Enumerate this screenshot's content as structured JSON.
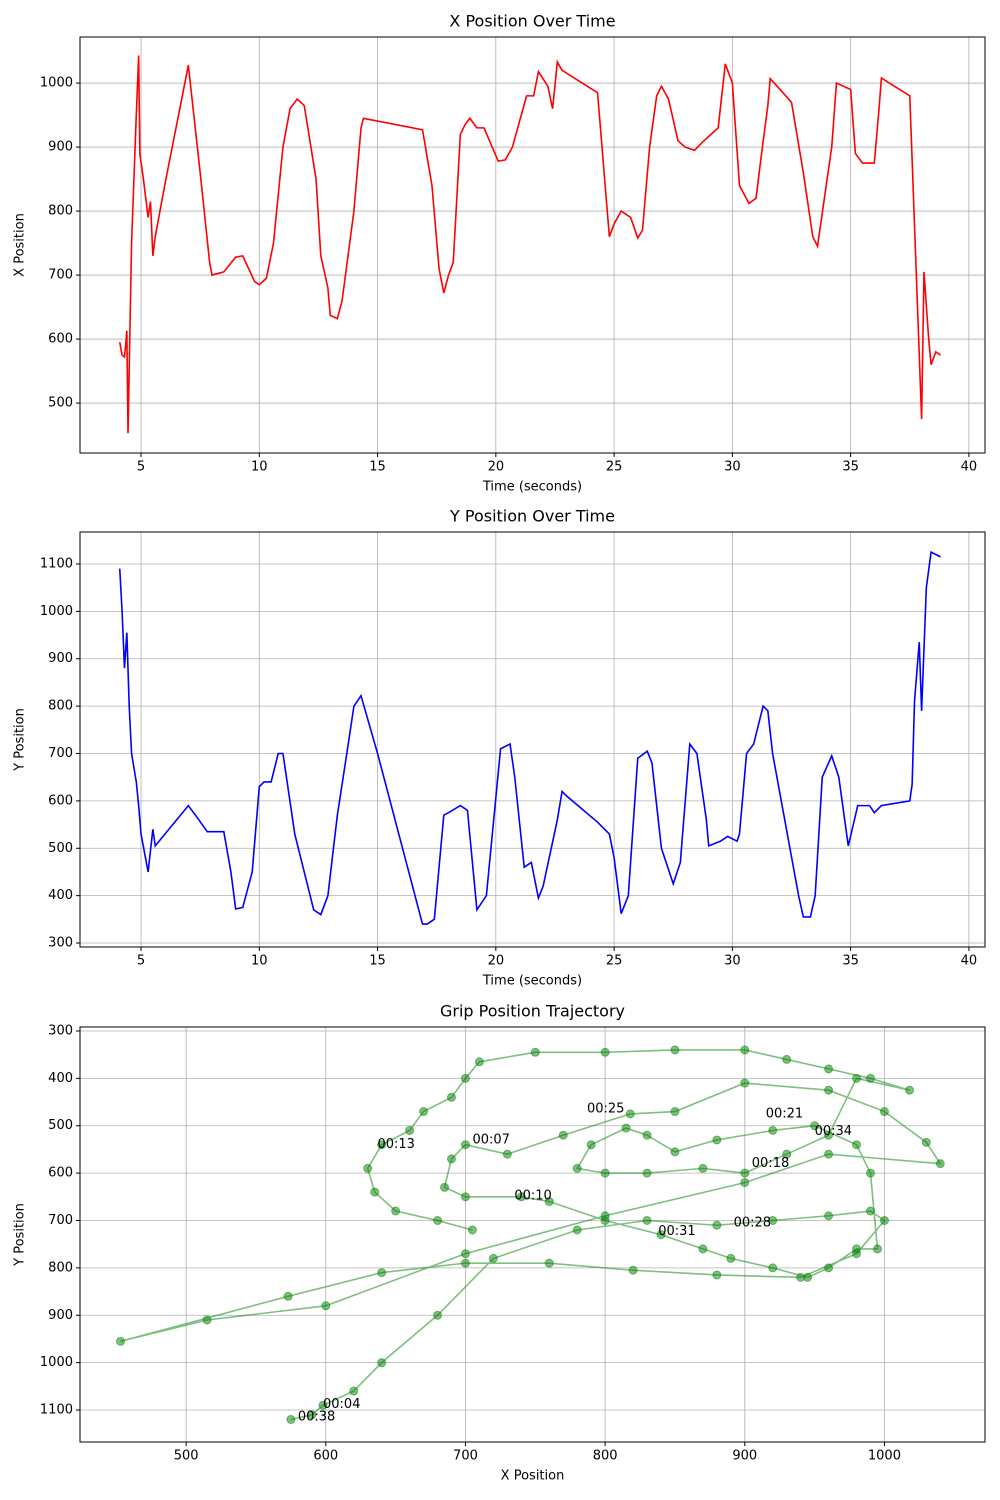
{
  "chart_data": [
    {
      "type": "line",
      "title": "X Position Over Time",
      "x_label": "Time (seconds)",
      "y_label": "X Position",
      "xlim": [
        2.42,
        40.68
      ],
      "ylim": [
        422,
        1072
      ],
      "xticks": [
        5,
        10,
        15,
        20,
        25,
        30,
        35,
        40
      ],
      "yticks": [
        500,
        600,
        700,
        800,
        900,
        1000
      ],
      "grid": true,
      "series": [
        {
          "name": "X",
          "color": "#ff0000",
          "x": [
            4.1,
            4.2,
            4.3,
            4.35,
            4.4,
            4.45,
            4.6,
            4.8,
            4.9,
            4.95,
            5.1,
            5.3,
            5.4,
            5.5,
            5.6,
            6.0,
            7.0,
            7.5,
            7.9,
            8.0,
            8.5,
            9.0,
            9.3,
            9.8,
            10.0,
            10.3,
            10.6,
            11.0,
            11.3,
            11.6,
            11.9,
            12.4,
            12.6,
            12.9,
            13.0,
            13.3,
            13.5,
            14.0,
            14.3,
            14.4,
            16.9,
            17.3,
            17.6,
            17.8,
            18.0,
            18.2,
            18.5,
            18.7,
            18.9,
            19.2,
            19.5,
            20.1,
            20.4,
            20.7,
            21.3,
            21.6,
            21.8,
            22.2,
            22.4,
            22.6,
            22.8,
            24.3,
            24.8,
            25.0,
            25.3,
            25.7,
            26.0,
            26.2,
            26.5,
            26.8,
            27.0,
            27.3,
            27.7,
            28.0,
            28.4,
            28.8,
            29.4,
            29.7,
            30.0,
            30.3,
            30.7,
            31.0,
            31.2,
            31.5,
            31.6,
            32.5,
            33.0,
            33.4,
            33.6,
            34.2,
            34.4,
            35.0,
            35.2,
            35.5,
            36.0,
            36.2,
            36.3,
            37.5,
            38.0,
            38.1,
            38.3,
            38.4,
            38.6,
            38.8
          ],
          "values": [
            595,
            575,
            572,
            590,
            613,
            453,
            750,
            950,
            1043,
            890,
            850,
            790,
            815,
            730,
            760,
            840,
            1028,
            860,
            720,
            700,
            705,
            728,
            730,
            690,
            685,
            695,
            750,
            900,
            960,
            975,
            965,
            850,
            730,
            680,
            637,
            632,
            660,
            800,
            930,
            945,
            927,
            840,
            710,
            672,
            700,
            720,
            920,
            935,
            945,
            930,
            930,
            878,
            880,
            900,
            980,
            980,
            1018,
            995,
            960,
            1033,
            1020,
            985,
            760,
            780,
            800,
            790,
            758,
            770,
            900,
            980,
            995,
            975,
            910,
            900,
            895,
            910,
            930,
            1030,
            1000,
            840,
            812,
            820,
            880,
            965,
            1007,
            970,
            860,
            760,
            745,
            900,
            1000,
            990,
            890,
            875,
            875,
            960,
            1008,
            980,
            475,
            705,
            600,
            560,
            580,
            575
          ]
        }
      ]
    },
    {
      "type": "line",
      "title": "Y Position Over Time",
      "x_label": "Time (seconds)",
      "y_label": "Y Position",
      "xlim": [
        2.42,
        40.68
      ],
      "ylim": [
        291.6,
        1167.5
      ],
      "xticks": [
        5,
        10,
        15,
        20,
        25,
        30,
        35,
        40
      ],
      "yticks": [
        300,
        400,
        500,
        600,
        700,
        800,
        900,
        1000,
        1100
      ],
      "grid": true,
      "series": [
        {
          "name": "Y",
          "color": "#0000ff",
          "x": [
            4.1,
            4.2,
            4.3,
            4.4,
            4.5,
            4.6,
            4.8,
            4.9,
            5.0,
            5.3,
            5.5,
            5.6,
            7.0,
            7.3,
            7.8,
            8.5,
            8.8,
            9.0,
            9.3,
            9.7,
            10.0,
            10.2,
            10.5,
            10.8,
            11.0,
            11.5,
            12.3,
            12.6,
            12.9,
            13.3,
            13.7,
            14.0,
            14.3,
            15.0,
            16.9,
            17.1,
            17.4,
            17.8,
            18.0,
            18.5,
            18.8,
            19.2,
            19.6,
            20.2,
            20.6,
            20.8,
            21.2,
            21.5,
            21.8,
            22.0,
            22.6,
            22.8,
            23.0,
            24.3,
            24.8,
            25.0,
            25.3,
            25.6,
            26.0,
            26.4,
            26.6,
            27.0,
            27.5,
            27.8,
            28.2,
            28.5,
            28.9,
            29.0,
            29.5,
            29.8,
            30.2,
            30.3,
            30.6,
            30.9,
            31.3,
            31.5,
            31.7,
            32.8,
            33.0,
            33.3,
            33.5,
            33.8,
            34.2,
            34.5,
            34.9,
            35.3,
            35.8,
            36.0,
            36.3,
            37.5,
            37.6,
            37.7,
            37.9,
            38.0,
            38.2,
            38.4,
            38.6,
            38.8
          ],
          "values": [
            1090,
            1000,
            880,
            955,
            800,
            700,
            640,
            590,
            530,
            450,
            540,
            505,
            590,
            570,
            535,
            535,
            450,
            372,
            375,
            450,
            630,
            640,
            640,
            700,
            700,
            530,
            370,
            360,
            400,
            570,
            700,
            800,
            822,
            700,
            340,
            340,
            350,
            570,
            575,
            590,
            580,
            370,
            400,
            710,
            720,
            650,
            460,
            470,
            395,
            420,
            560,
            620,
            610,
            555,
            530,
            480,
            362,
            400,
            690,
            705,
            680,
            500,
            425,
            470,
            720,
            700,
            560,
            505,
            515,
            525,
            515,
            530,
            700,
            720,
            800,
            790,
            700,
            400,
            355,
            355,
            400,
            650,
            695,
            650,
            505,
            590,
            590,
            575,
            590,
            600,
            635,
            810,
            935,
            790,
            1050,
            1125,
            1120,
            1115
          ]
        }
      ]
    },
    {
      "type": "scatter",
      "connected": true,
      "y_inverted": true,
      "title": "Grip Position Trajectory",
      "x_label": "X Position",
      "y_label": "Y Position",
      "xlim": [
        424,
        1072
      ],
      "ylim": [
        291.6,
        1167.5
      ],
      "xticks": [
        500,
        600,
        700,
        800,
        900,
        1000
      ],
      "yticks": [
        300,
        400,
        500,
        600,
        700,
        800,
        900,
        1000,
        1100
      ],
      "grid": true,
      "series": [
        {
          "name": "Trajectory",
          "color": "#008000",
          "x": [
            575,
            590,
            598,
            620,
            640,
            680,
            720,
            780,
            830,
            880,
            920,
            960,
            990,
            1000,
            980,
            940,
            880,
            820,
            760,
            700,
            640,
            573,
            453,
            515,
            600,
            700,
            800,
            900,
            960,
            1040,
            1030,
            1000,
            960,
            900,
            850,
            818,
            770,
            730,
            700,
            690,
            685,
            700,
            740,
            760,
            800,
            840,
            870,
            890,
            920,
            945,
            960,
            980,
            995,
            990,
            980,
            950,
            920,
            880,
            850,
            830,
            815,
            790,
            780,
            800,
            830,
            870,
            900,
            930,
            960,
            980,
            1018,
            990,
            960,
            930,
            900,
            850,
            800,
            750,
            710,
            700,
            690,
            670,
            660,
            640,
            630,
            635,
            650,
            680,
            705
          ],
          "values": [
            1120,
            1110,
            1090,
            1060,
            1000,
            900,
            780,
            720,
            700,
            710,
            700,
            690,
            680,
            700,
            770,
            820,
            815,
            805,
            790,
            790,
            810,
            860,
            955,
            910,
            880,
            770,
            690,
            620,
            560,
            580,
            535,
            470,
            425,
            410,
            470,
            475,
            520,
            560,
            540,
            570,
            630,
            650,
            650,
            660,
            700,
            730,
            760,
            780,
            800,
            820,
            800,
            760,
            760,
            600,
            540,
            500,
            510,
            530,
            555,
            520,
            505,
            540,
            590,
            600,
            600,
            590,
            600,
            560,
            520,
            400,
            425,
            400,
            380,
            360,
            340,
            340,
            345,
            345,
            365,
            400,
            440,
            470,
            510,
            540,
            590,
            640,
            680,
            700,
            720
          ]
        }
      ],
      "annotations": [
        {
          "text": "00:04",
          "x": 598,
          "y": 1088
        },
        {
          "text": "00:38",
          "x": 580,
          "y": 1115
        },
        {
          "text": "00:13",
          "x": 637,
          "y": 540
        },
        {
          "text": "00:07",
          "x": 705,
          "y": 530
        },
        {
          "text": "00:10",
          "x": 735,
          "y": 648
        },
        {
          "text": "00:25",
          "x": 787,
          "y": 465
        },
        {
          "text": "00:21",
          "x": 915,
          "y": 475
        },
        {
          "text": "00:34",
          "x": 950,
          "y": 512
        },
        {
          "text": "00:18",
          "x": 905,
          "y": 580
        },
        {
          "text": "00:31",
          "x": 838,
          "y": 723
        },
        {
          "text": "00:28",
          "x": 892,
          "y": 705
        }
      ]
    }
  ]
}
